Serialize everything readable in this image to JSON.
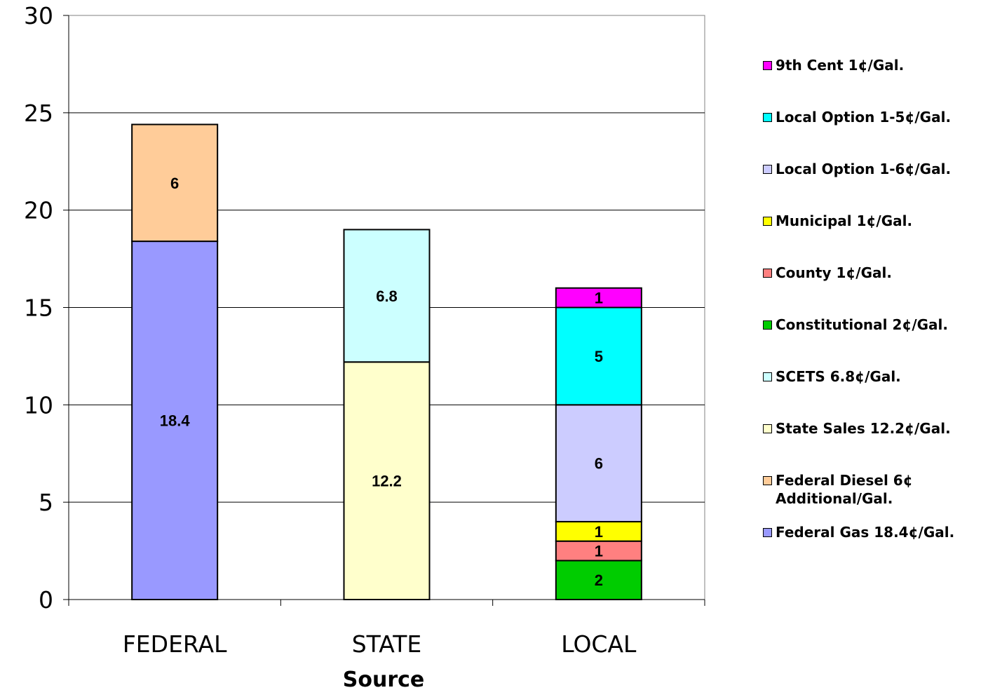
{
  "chart_data": {
    "type": "bar",
    "stacked": true,
    "title": "",
    "xlabel": "Source",
    "ylabel": "",
    "ylim": [
      0,
      30
    ],
    "yticks": [
      "0",
      "5",
      "10",
      "15",
      "20",
      "25",
      "30"
    ],
    "categories": [
      "FEDERAL",
      "STATE",
      "LOCAL"
    ],
    "grid": true,
    "legend_position": "right",
    "series": [
      {
        "name": "Federal Gas 18.4¢/Gal.",
        "color": "#9999ff",
        "values": [
          18.4,
          0,
          0
        ],
        "labels": [
          "18.4",
          "",
          ""
        ]
      },
      {
        "name": "Federal Diesel 6¢\nAdditional/Gal.",
        "color": "#ffcc99",
        "values": [
          6,
          0,
          0
        ],
        "labels": [
          "6",
          "",
          ""
        ]
      },
      {
        "name": "State Sales 12.2¢/Gal.",
        "color": "#ffffcc",
        "values": [
          0,
          12.2,
          0
        ],
        "labels": [
          "",
          "12.2",
          ""
        ]
      },
      {
        "name": "SCETS 6.8¢/Gal.",
        "color": "#ccffff",
        "values": [
          0,
          6.8,
          0
        ],
        "labels": [
          "",
          "6.8",
          ""
        ]
      },
      {
        "name": "Constitutional 2¢/Gal.",
        "color": "#00cc00",
        "values": [
          0,
          0,
          2
        ],
        "labels": [
          "",
          "",
          "2"
        ]
      },
      {
        "name": "County 1¢/Gal.",
        "color": "#ff8080",
        "values": [
          0,
          0,
          1
        ],
        "labels": [
          "",
          "",
          "1"
        ]
      },
      {
        "name": "Municipal 1¢/Gal.",
        "color": "#ffff00",
        "values": [
          0,
          0,
          1
        ],
        "labels": [
          "",
          "",
          "1"
        ]
      },
      {
        "name": "Local Option 1-6¢/Gal.",
        "color": "#ccccff",
        "values": [
          0,
          0,
          6
        ],
        "labels": [
          "",
          "",
          "6"
        ]
      },
      {
        "name": "Local Option 1-5¢/Gal.",
        "color": "#00ffff",
        "values": [
          0,
          0,
          5
        ],
        "labels": [
          "",
          "",
          "5"
        ]
      },
      {
        "name": "9th Cent 1¢/Gal.",
        "color": "#ff00ff",
        "values": [
          0,
          0,
          1
        ],
        "labels": [
          "",
          "",
          "1"
        ]
      }
    ]
  }
}
